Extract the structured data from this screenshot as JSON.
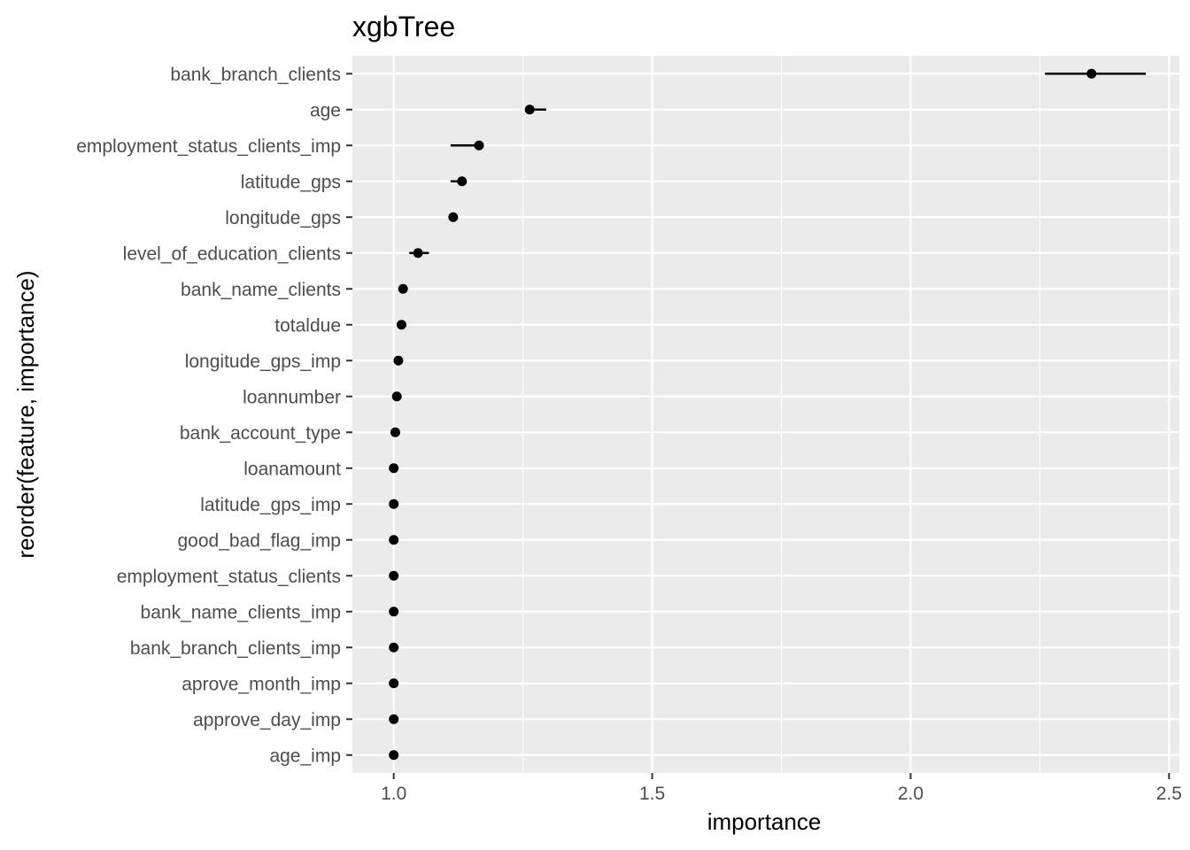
{
  "chart_data": {
    "type": "scatter",
    "title": "xgbTree",
    "xlabel": "importance",
    "ylabel": "reorder(feature, importance)",
    "xlim": [
      0.92,
      2.52
    ],
    "xticks": [
      1.0,
      1.5,
      2.0,
      2.5
    ],
    "xtick_labels": [
      "1.0",
      "1.5",
      "2.0",
      "2.5"
    ],
    "grid": true,
    "colors": {
      "panel": "#ebebeb",
      "grid": "#ffffff",
      "point": "#000000",
      "tick_text": "#4d4d4d"
    },
    "points": [
      {
        "feature": "bank_branch_clients",
        "importance": 2.35,
        "lower": 2.26,
        "upper": 2.455
      },
      {
        "feature": "age",
        "importance": 1.263,
        "lower": 1.263,
        "upper": 1.295
      },
      {
        "feature": "employment_status_clients_imp",
        "importance": 1.165,
        "lower": 1.11,
        "upper": 1.165
      },
      {
        "feature": "latitude_gps",
        "importance": 1.132,
        "lower": 1.11,
        "upper": 1.132
      },
      {
        "feature": "longitude_gps",
        "importance": 1.115,
        "lower": 1.115,
        "upper": 1.115
      },
      {
        "feature": "level_of_education_clients",
        "importance": 1.047,
        "lower": 1.03,
        "upper": 1.068
      },
      {
        "feature": "bank_name_clients",
        "importance": 1.018,
        "lower": 1.018,
        "upper": 1.018
      },
      {
        "feature": "totaldue",
        "importance": 1.015,
        "lower": 1.015,
        "upper": 1.015
      },
      {
        "feature": "longitude_gps_imp",
        "importance": 1.009,
        "lower": 1.009,
        "upper": 1.009
      },
      {
        "feature": "loannumber",
        "importance": 1.006,
        "lower": 1.006,
        "upper": 1.006
      },
      {
        "feature": "bank_account_type",
        "importance": 1.003,
        "lower": 1.003,
        "upper": 1.003
      },
      {
        "feature": "loanamount",
        "importance": 1.0,
        "lower": 1.0,
        "upper": 1.0
      },
      {
        "feature": "latitude_gps_imp",
        "importance": 1.0,
        "lower": 1.0,
        "upper": 1.0
      },
      {
        "feature": "good_bad_flag_imp",
        "importance": 1.0,
        "lower": 1.0,
        "upper": 1.0
      },
      {
        "feature": "employment_status_clients",
        "importance": 1.0,
        "lower": 1.0,
        "upper": 1.0
      },
      {
        "feature": "bank_name_clients_imp",
        "importance": 1.0,
        "lower": 1.0,
        "upper": 1.0
      },
      {
        "feature": "bank_branch_clients_imp",
        "importance": 1.0,
        "lower": 1.0,
        "upper": 1.0
      },
      {
        "feature": "aprove_month_imp",
        "importance": 1.0,
        "lower": 1.0,
        "upper": 1.0
      },
      {
        "feature": "approve_day_imp",
        "importance": 1.0,
        "lower": 1.0,
        "upper": 1.0
      },
      {
        "feature": "age_imp",
        "importance": 1.0,
        "lower": 1.0,
        "upper": 1.0
      }
    ]
  }
}
